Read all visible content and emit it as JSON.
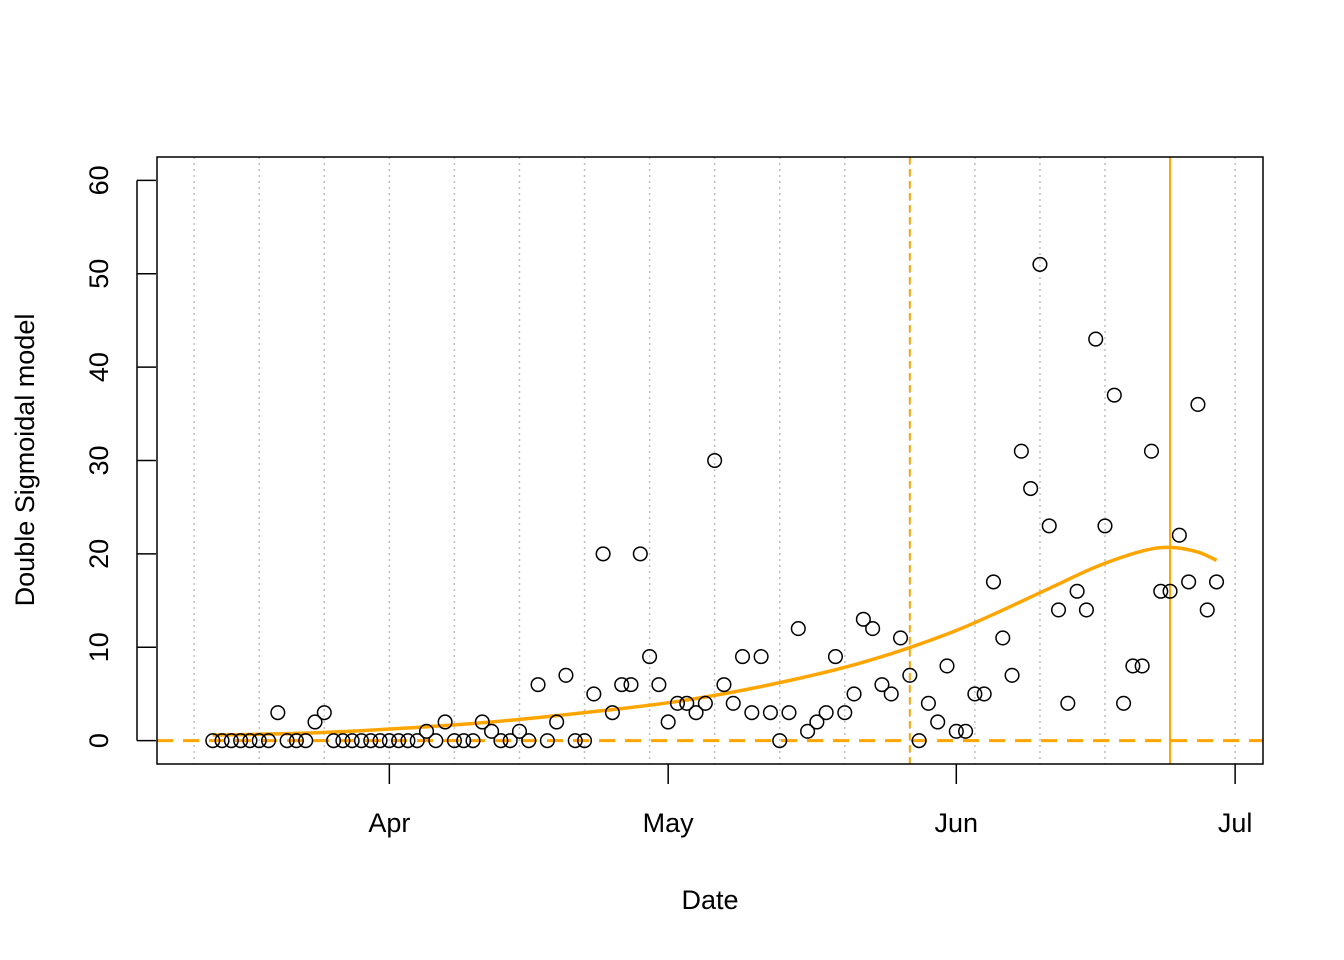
{
  "chart_data": {
    "type": "scatter",
    "xlabel": "Date",
    "ylabel": "Double Sigmoidal model",
    "ylim": [
      -2.5,
      62.5
    ],
    "xlim": [
      "2020-03-07",
      "2020-07-04"
    ],
    "x_ticks": [
      {
        "date": "2020-04-01",
        "label": "Apr"
      },
      {
        "date": "2020-05-01",
        "label": "May"
      },
      {
        "date": "2020-06-01",
        "label": "Jun"
      },
      {
        "date": "2020-07-01",
        "label": "Jul"
      }
    ],
    "y_ticks": [
      0,
      10,
      20,
      30,
      40,
      50,
      60
    ],
    "grid": "vertical dotted gray, weekly",
    "grid_dates": [
      "2020-03-11",
      "2020-03-18",
      "2020-03-25",
      "2020-04-01",
      "2020-04-08",
      "2020-04-15",
      "2020-04-22",
      "2020-04-29",
      "2020-05-06",
      "2020-05-13",
      "2020-05-20",
      "2020-05-27",
      "2020-06-03",
      "2020-06-10",
      "2020-06-17",
      "2020-06-24",
      "2020-07-01"
    ],
    "points": [
      [
        "2020-03-13",
        0
      ],
      [
        "2020-03-14",
        0
      ],
      [
        "2020-03-15",
        0
      ],
      [
        "2020-03-16",
        0
      ],
      [
        "2020-03-17",
        0
      ],
      [
        "2020-03-18",
        0
      ],
      [
        "2020-03-19",
        0
      ],
      [
        "2020-03-20",
        3
      ],
      [
        "2020-03-21",
        0
      ],
      [
        "2020-03-22",
        0
      ],
      [
        "2020-03-23",
        0
      ],
      [
        "2020-03-24",
        2
      ],
      [
        "2020-03-25",
        3
      ],
      [
        "2020-03-26",
        0
      ],
      [
        "2020-03-27",
        0
      ],
      [
        "2020-03-28",
        0
      ],
      [
        "2020-03-29",
        0
      ],
      [
        "2020-03-30",
        0
      ],
      [
        "2020-03-31",
        0
      ],
      [
        "2020-04-01",
        0
      ],
      [
        "2020-04-02",
        0
      ],
      [
        "2020-04-03",
        0
      ],
      [
        "2020-04-04",
        0
      ],
      [
        "2020-04-05",
        1
      ],
      [
        "2020-04-06",
        0
      ],
      [
        "2020-04-07",
        2
      ],
      [
        "2020-04-08",
        0
      ],
      [
        "2020-04-09",
        0
      ],
      [
        "2020-04-10",
        0
      ],
      [
        "2020-04-11",
        2
      ],
      [
        "2020-04-12",
        1
      ],
      [
        "2020-04-13",
        0
      ],
      [
        "2020-04-14",
        0
      ],
      [
        "2020-04-15",
        1
      ],
      [
        "2020-04-16",
        0
      ],
      [
        "2020-04-17",
        6
      ],
      [
        "2020-04-18",
        0
      ],
      [
        "2020-04-19",
        2
      ],
      [
        "2020-04-20",
        7
      ],
      [
        "2020-04-21",
        0
      ],
      [
        "2020-04-22",
        0
      ],
      [
        "2020-04-23",
        5
      ],
      [
        "2020-04-24",
        20
      ],
      [
        "2020-04-25",
        3
      ],
      [
        "2020-04-26",
        6
      ],
      [
        "2020-04-27",
        6
      ],
      [
        "2020-04-28",
        20
      ],
      [
        "2020-04-29",
        9
      ],
      [
        "2020-04-30",
        6
      ],
      [
        "2020-05-01",
        2
      ],
      [
        "2020-05-02",
        4
      ],
      [
        "2020-05-03",
        4
      ],
      [
        "2020-05-04",
        3
      ],
      [
        "2020-05-05",
        4
      ],
      [
        "2020-05-06",
        30
      ],
      [
        "2020-05-07",
        6
      ],
      [
        "2020-05-08",
        4
      ],
      [
        "2020-05-09",
        9
      ],
      [
        "2020-05-10",
        3
      ],
      [
        "2020-05-11",
        9
      ],
      [
        "2020-05-12",
        3
      ],
      [
        "2020-05-13",
        0
      ],
      [
        "2020-05-14",
        3
      ],
      [
        "2020-05-15",
        12
      ],
      [
        "2020-05-16",
        1
      ],
      [
        "2020-05-17",
        2
      ],
      [
        "2020-05-18",
        3
      ],
      [
        "2020-05-19",
        9
      ],
      [
        "2020-05-20",
        3
      ],
      [
        "2020-05-21",
        5
      ],
      [
        "2020-05-22",
        13
      ],
      [
        "2020-05-23",
        12
      ],
      [
        "2020-05-24",
        6
      ],
      [
        "2020-05-25",
        5
      ],
      [
        "2020-05-26",
        11
      ],
      [
        "2020-05-27",
        7
      ],
      [
        "2020-05-28",
        0
      ],
      [
        "2020-05-29",
        4
      ],
      [
        "2020-05-30",
        2
      ],
      [
        "2020-05-31",
        8
      ],
      [
        "2020-06-01",
        1
      ],
      [
        "2020-06-02",
        1
      ],
      [
        "2020-06-03",
        5
      ],
      [
        "2020-06-04",
        5
      ],
      [
        "2020-06-05",
        17
      ],
      [
        "2020-06-06",
        11
      ],
      [
        "2020-06-07",
        7
      ],
      [
        "2020-06-08",
        31
      ],
      [
        "2020-06-09",
        27
      ],
      [
        "2020-06-10",
        51
      ],
      [
        "2020-06-11",
        23
      ],
      [
        "2020-06-12",
        14
      ],
      [
        "2020-06-13",
        4
      ],
      [
        "2020-06-14",
        16
      ],
      [
        "2020-06-15",
        14
      ],
      [
        "2020-06-16",
        43
      ],
      [
        "2020-06-17",
        23
      ],
      [
        "2020-06-18",
        37
      ],
      [
        "2020-06-19",
        4
      ],
      [
        "2020-06-20",
        8
      ],
      [
        "2020-06-21",
        8
      ],
      [
        "2020-06-22",
        31
      ],
      [
        "2020-06-23",
        16
      ],
      [
        "2020-06-24",
        16
      ],
      [
        "2020-06-25",
        22
      ],
      [
        "2020-06-26",
        17
      ],
      [
        "2020-06-27",
        36
      ],
      [
        "2020-06-28",
        14
      ],
      [
        "2020-06-29",
        17
      ]
    ],
    "fitted_curve": [
      [
        "2020-03-13",
        0.6
      ],
      [
        "2020-03-23",
        0.8
      ],
      [
        "2020-04-02",
        1.3
      ],
      [
        "2020-04-12",
        2.0
      ],
      [
        "2020-04-22",
        3.0
      ],
      [
        "2020-05-02",
        4.2
      ],
      [
        "2020-05-12",
        6.0
      ],
      [
        "2020-05-22",
        8.4
      ],
      [
        "2020-06-01",
        11.8
      ],
      [
        "2020-06-11",
        16.3
      ],
      [
        "2020-06-16",
        18.6
      ],
      [
        "2020-06-21",
        20.3
      ],
      [
        "2020-06-24",
        20.7
      ],
      [
        "2020-06-27",
        20.2
      ],
      [
        "2020-06-29",
        19.3
      ]
    ],
    "hline_y": 0,
    "vline_dashed_date": "2020-05-27",
    "vline_solid_date": "2020-06-24",
    "colors": {
      "points": "#000000",
      "fit": "#FFA500",
      "grid": "#BEBEBE"
    }
  }
}
